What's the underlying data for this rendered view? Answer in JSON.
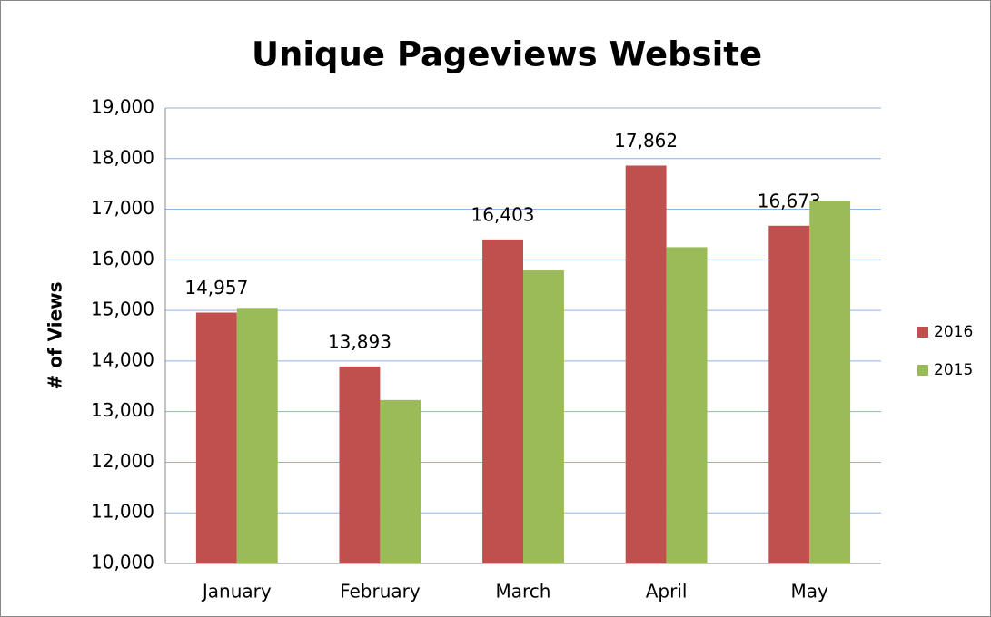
{
  "chart_data": {
    "type": "bar",
    "title": "Unique Pageviews Website",
    "y_label": "# of Views",
    "categories": [
      "January",
      "February",
      "March",
      "April",
      "May"
    ],
    "series": [
      {
        "name": "2016",
        "color": "#c0504d",
        "values": [
          14957,
          13893,
          16403,
          17862,
          16673
        ],
        "value_labels": [
          "14,957",
          "13,893",
          "16,403",
          "17,862",
          "16,673"
        ]
      },
      {
        "name": "2015",
        "color": "#9bbb59",
        "values": [
          15050,
          13230,
          15790,
          16250,
          17170
        ]
      }
    ],
    "ylim": [
      10000,
      19000
    ],
    "yticks": [
      {
        "value": 10000,
        "label": "10,000"
      },
      {
        "value": 11000,
        "label": "11,000"
      },
      {
        "value": 12000,
        "label": "12,000"
      },
      {
        "value": 13000,
        "label": "13,000"
      },
      {
        "value": 14000,
        "label": "14,000"
      },
      {
        "value": 15000,
        "label": "15,000"
      },
      {
        "value": 16000,
        "label": "16,000"
      },
      {
        "value": 17000,
        "label": "17,000"
      },
      {
        "value": 18000,
        "label": "18,000"
      },
      {
        "value": 19000,
        "label": "19,000"
      }
    ],
    "grid": true,
    "legend": "right"
  }
}
